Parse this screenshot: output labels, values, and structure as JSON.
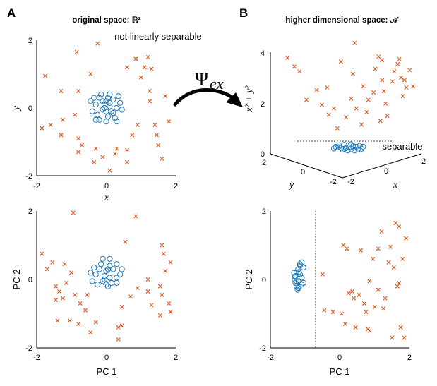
{
  "figure": {
    "panel_a_letter": "A",
    "panel_b_letter": "B",
    "panel_a_title": "original space: ℝ²",
    "panel_b_title": "higher dimensional space: 𝒜",
    "arrow_label_main": "Ψ",
    "arrow_label_sub": "ex",
    "colors": {
      "circles": "#1f77b4",
      "crosses": "#d95319"
    }
  },
  "chart_data": [
    {
      "id": "top-left",
      "type": "scatter",
      "annotation": "not linearly separable",
      "xlabel": "x",
      "ylabel": "y",
      "xlim": [
        -2,
        2
      ],
      "ylim": [
        -2,
        2
      ],
      "xticks": [
        "-2",
        "0",
        "2"
      ],
      "yticks": [
        "-2",
        "0",
        "2"
      ],
      "series": [
        {
          "marker": "circle",
          "points": [
            [
              -0.05,
              0.1
            ],
            [
              0.1,
              0.05
            ],
            [
              -0.1,
              -0.05
            ],
            [
              0.0,
              0.2
            ],
            [
              0.15,
              -0.1
            ],
            [
              -0.2,
              0.3
            ],
            [
              0.2,
              0.25
            ],
            [
              -0.3,
              0.1
            ],
            [
              0.3,
              0.0
            ],
            [
              -0.25,
              -0.2
            ],
            [
              0.05,
              -0.25
            ],
            [
              0.25,
              -0.3
            ],
            [
              -0.4,
              -0.1
            ],
            [
              0.4,
              0.15
            ],
            [
              -0.15,
              0.4
            ],
            [
              0.1,
              0.4
            ],
            [
              -0.35,
              0.3
            ],
            [
              0.35,
              0.35
            ],
            [
              0.0,
              -0.4
            ],
            [
              -0.2,
              -0.35
            ],
            [
              0.2,
              -0.15
            ],
            [
              -0.05,
              0.0
            ],
            [
              0.05,
              0.3
            ],
            [
              -0.45,
              0.2
            ],
            [
              0.45,
              -0.05
            ],
            [
              0.3,
              -0.4
            ],
            [
              -0.3,
              -0.35
            ],
            [
              0.1,
              0.15
            ],
            [
              -0.1,
              0.2
            ],
            [
              0.0,
              -0.1
            ]
          ]
        },
        {
          "marker": "cross",
          "points": [
            [
              -1.75,
              0.95
            ],
            [
              -1.3,
              0.5
            ],
            [
              -1.85,
              -0.6
            ],
            [
              -1.6,
              -0.5
            ],
            [
              -1.25,
              -0.35
            ],
            [
              -1.3,
              -0.8
            ],
            [
              -0.9,
              -0.2
            ],
            [
              -0.8,
              -0.9
            ],
            [
              -0.7,
              -1.1
            ],
            [
              -0.8,
              -1.3
            ],
            [
              -0.35,
              -1.6
            ],
            [
              -0.3,
              -1.2
            ],
            [
              -0.1,
              -1.45
            ],
            [
              0.1,
              -1.85
            ],
            [
              0.25,
              -1.35
            ],
            [
              0.3,
              -1.2
            ],
            [
              0.6,
              -1.25
            ],
            [
              0.6,
              -1.6
            ],
            [
              0.75,
              -0.8
            ],
            [
              0.9,
              -0.5
            ],
            [
              1.0,
              0.9
            ],
            [
              1.25,
              0.5
            ],
            [
              1.25,
              0.2
            ],
            [
              1.4,
              -0.5
            ],
            [
              1.45,
              -0.8
            ],
            [
              1.5,
              -1.1
            ],
            [
              1.6,
              -1.5
            ],
            [
              1.7,
              0.35
            ],
            [
              1.8,
              -0.4
            ],
            [
              1.3,
              1.15
            ],
            [
              1.2,
              1.5
            ],
            [
              1.1,
              1.2
            ],
            [
              0.85,
              1.45
            ],
            [
              0.6,
              1.2
            ],
            [
              -0.8,
              0.5
            ],
            [
              -0.45,
              1.0
            ],
            [
              -0.85,
              1.65
            ],
            [
              -0.25,
              1.9
            ]
          ]
        }
      ]
    },
    {
      "id": "top-right",
      "type": "scatter",
      "annotation": "separable",
      "xlabel": "x",
      "ylabel": "x² + y²",
      "ylabel_zaxis": "y",
      "xlim": [
        -2,
        2
      ],
      "ylim": [
        0,
        4
      ],
      "xticks": [
        "-2",
        "0",
        "2"
      ],
      "depth_ticks": [
        "2",
        "0",
        "-2"
      ],
      "yticks": [
        "0",
        "2",
        "4"
      ],
      "series": [
        {
          "marker": "circle",
          "points": [
            [
              -0.1,
              0.12
            ],
            [
              0.1,
              0.1
            ],
            [
              0.2,
              0.05
            ],
            [
              -0.2,
              0.15
            ],
            [
              0.3,
              0.1
            ],
            [
              -0.3,
              0.18
            ],
            [
              0.4,
              0.12
            ],
            [
              -0.4,
              0.13
            ],
            [
              0.0,
              0.05
            ],
            [
              0.15,
              0.22
            ],
            [
              -0.15,
              0.08
            ],
            [
              0.25,
              0.2
            ],
            [
              -0.25,
              0.26
            ],
            [
              0.35,
              0.24
            ],
            [
              -0.35,
              0.2
            ],
            [
              0.05,
              0.18
            ],
            [
              -0.05,
              0.15
            ],
            [
              0.45,
              0.2
            ],
            [
              0.1,
              0.3
            ],
            [
              -0.1,
              0.28
            ]
          ]
        },
        {
          "marker": "cross",
          "points": [
            [
              -1.75,
              3.8
            ],
            [
              -1.55,
              3.45
            ],
            [
              -1.4,
              3.25
            ],
            [
              -1.2,
              2.1
            ],
            [
              -0.9,
              2.5
            ],
            [
              -0.75,
              1.9
            ],
            [
              -0.55,
              1.5
            ],
            [
              -0.4,
              1.75
            ],
            [
              -0.3,
              0.95
            ],
            [
              -0.6,
              2.6
            ],
            [
              -0.2,
              3.65
            ],
            [
              0.2,
              4.4
            ],
            [
              0.15,
              3.15
            ],
            [
              0.1,
              2.15
            ],
            [
              0.25,
              1.75
            ],
            [
              0.4,
              1.1
            ],
            [
              0.55,
              1.6
            ],
            [
              0.6,
              2.1
            ],
            [
              0.75,
              2.4
            ],
            [
              0.9,
              3.85
            ],
            [
              1.0,
              2.9
            ],
            [
              1.05,
              2.45
            ],
            [
              1.1,
              1.95
            ],
            [
              1.15,
              1.45
            ],
            [
              1.3,
              2.85
            ],
            [
              1.35,
              3.25
            ],
            [
              1.45,
              3.55
            ],
            [
              1.55,
              3.0
            ],
            [
              1.6,
              2.25
            ],
            [
              1.7,
              2.6
            ],
            [
              1.8,
              3.3
            ],
            [
              1.9,
              2.65
            ],
            [
              1.0,
              3.7
            ],
            [
              0.8,
              3.35
            ],
            [
              -0.05,
              1.4
            ],
            [
              0.95,
              1.25
            ],
            [
              0.45,
              2.65
            ],
            [
              1.5,
              3.75
            ],
            [
              1.65,
              2.9
            ]
          ]
        }
      ]
    },
    {
      "id": "bottom-left",
      "type": "scatter",
      "xlabel": "PC 1",
      "ylabel": "PC 2",
      "xlim": [
        -2,
        2
      ],
      "ylim": [
        -2,
        2
      ],
      "xticks": [
        "-2",
        "0",
        "2"
      ],
      "yticks": [
        "-2",
        "0",
        "2"
      ],
      "series": [
        {
          "marker": "circle",
          "points": [
            [
              -0.05,
              0.1
            ],
            [
              0.1,
              0.05
            ],
            [
              -0.1,
              -0.05
            ],
            [
              0.0,
              0.25
            ],
            [
              0.15,
              -0.1
            ],
            [
              -0.2,
              0.3
            ],
            [
              0.2,
              0.3
            ],
            [
              -0.3,
              0.15
            ],
            [
              0.3,
              0.05
            ],
            [
              -0.25,
              -0.15
            ],
            [
              0.05,
              -0.2
            ],
            [
              0.3,
              -0.1
            ],
            [
              -0.4,
              -0.05
            ],
            [
              0.4,
              0.15
            ],
            [
              -0.15,
              0.45
            ],
            [
              0.1,
              0.4
            ],
            [
              -0.35,
              0.35
            ],
            [
              0.3,
              0.45
            ],
            [
              0.0,
              -0.15
            ],
            [
              -0.1,
              0.6
            ],
            [
              0.1,
              0.6
            ],
            [
              -0.05,
              0.0
            ],
            [
              0.05,
              0.3
            ],
            [
              -0.45,
              0.2
            ],
            [
              0.45,
              0.3
            ]
          ]
        },
        {
          "marker": "cross",
          "points": [
            [
              -1.85,
              0.75
            ],
            [
              -1.7,
              0.3
            ],
            [
              -1.55,
              0.5
            ],
            [
              -1.45,
              -0.2
            ],
            [
              -1.35,
              -0.35
            ],
            [
              -1.45,
              -0.6
            ],
            [
              -1.2,
              0.45
            ],
            [
              -1.25,
              -0.55
            ],
            [
              -1.15,
              -0.1
            ],
            [
              -1.0,
              0.2
            ],
            [
              -0.9,
              -0.45
            ],
            [
              -0.75,
              -0.7
            ],
            [
              -0.6,
              -0.9
            ],
            [
              -0.55,
              -0.45
            ],
            [
              -0.8,
              -1.3
            ],
            [
              -0.45,
              -1.55
            ],
            [
              -0.3,
              -1.25
            ],
            [
              -1.4,
              -1.2
            ],
            [
              -1.05,
              -1.2
            ],
            [
              -0.95,
              1.95
            ],
            [
              0.35,
              -1.4
            ],
            [
              0.45,
              -0.8
            ],
            [
              0.45,
              -1.35
            ],
            [
              0.7,
              -0.5
            ],
            [
              0.9,
              -0.25
            ],
            [
              0.85,
              1.85
            ],
            [
              0.55,
              1.1
            ],
            [
              1.2,
              -0.35
            ],
            [
              1.3,
              -0.75
            ],
            [
              1.55,
              -0.2
            ],
            [
              1.6,
              -0.45
            ],
            [
              1.65,
              0.75
            ],
            [
              1.7,
              0.25
            ],
            [
              1.85,
              0.5
            ],
            [
              1.8,
              -0.7
            ],
            [
              1.85,
              -0.95
            ],
            [
              1.6,
              1.0
            ],
            [
              0.35,
              -1.75
            ],
            [
              1.2,
              0.0
            ],
            [
              1.55,
              -1.05
            ]
          ]
        }
      ]
    },
    {
      "id": "bottom-right",
      "type": "scatter",
      "xlabel": "PC 1",
      "ylabel": "PC 2",
      "xlim": [
        -2,
        2
      ],
      "ylim": [
        -2,
        2
      ],
      "xticks": [
        "-2",
        "0",
        "2"
      ],
      "yticks": [
        "-2",
        "0",
        "2"
      ],
      "separator_x": -0.7,
      "series": [
        {
          "marker": "circle",
          "points": [
            [
              -1.1,
              0.5
            ],
            [
              -1.15,
              0.4
            ],
            [
              -1.2,
              0.3
            ],
            [
              -1.25,
              0.2
            ],
            [
              -1.28,
              0.1
            ],
            [
              -1.3,
              0.0
            ],
            [
              -1.28,
              -0.1
            ],
            [
              -1.25,
              -0.2
            ],
            [
              -1.22,
              -0.3
            ],
            [
              -1.18,
              -0.22
            ],
            [
              -1.15,
              0.15
            ],
            [
              -1.2,
              -0.05
            ],
            [
              -1.1,
              -0.15
            ],
            [
              -1.05,
              0.35
            ],
            [
              -1.3,
              0.08
            ],
            [
              -1.25,
              -0.05
            ],
            [
              -1.15,
              0.45
            ],
            [
              -1.2,
              -0.25
            ],
            [
              -1.1,
              0.05
            ],
            [
              -1.05,
              -0.1
            ],
            [
              -1.32,
              0.2
            ],
            [
              -1.18,
              0.22
            ]
          ]
        },
        {
          "marker": "cross",
          "points": [
            [
              -0.5,
              0.15
            ],
            [
              -0.45,
              -0.9
            ],
            [
              -0.2,
              -0.95
            ],
            [
              0.05,
              -1.0
            ],
            [
              0.1,
              1.0
            ],
            [
              0.15,
              -1.3
            ],
            [
              0.2,
              0.9
            ],
            [
              0.25,
              -0.4
            ],
            [
              0.35,
              -0.35
            ],
            [
              0.4,
              -0.55
            ],
            [
              0.45,
              -1.4
            ],
            [
              0.55,
              -0.45
            ],
            [
              0.6,
              0.85
            ],
            [
              0.7,
              -0.7
            ],
            [
              0.75,
              -0.95
            ],
            [
              0.8,
              -1.45
            ],
            [
              0.85,
              -1.5
            ],
            [
              0.85,
              -0.05
            ],
            [
              0.95,
              0.6
            ],
            [
              1.0,
              -0.8
            ],
            [
              1.1,
              0.9
            ],
            [
              1.2,
              1.4
            ],
            [
              1.25,
              -0.85
            ],
            [
              1.3,
              -0.55
            ],
            [
              1.4,
              0.5
            ],
            [
              1.5,
              -1.7
            ],
            [
              1.55,
              0.35
            ],
            [
              1.6,
              1.65
            ],
            [
              1.65,
              -0.2
            ],
            [
              1.7,
              1.55
            ],
            [
              1.75,
              -1.4
            ],
            [
              1.8,
              0.6
            ],
            [
              1.85,
              -1.7
            ],
            [
              1.9,
              1.2
            ],
            [
              1.7,
              -0.1
            ],
            [
              1.1,
              -0.3
            ],
            [
              0.55,
              -0.45
            ],
            [
              1.45,
              0.95
            ]
          ]
        }
      ]
    }
  ]
}
